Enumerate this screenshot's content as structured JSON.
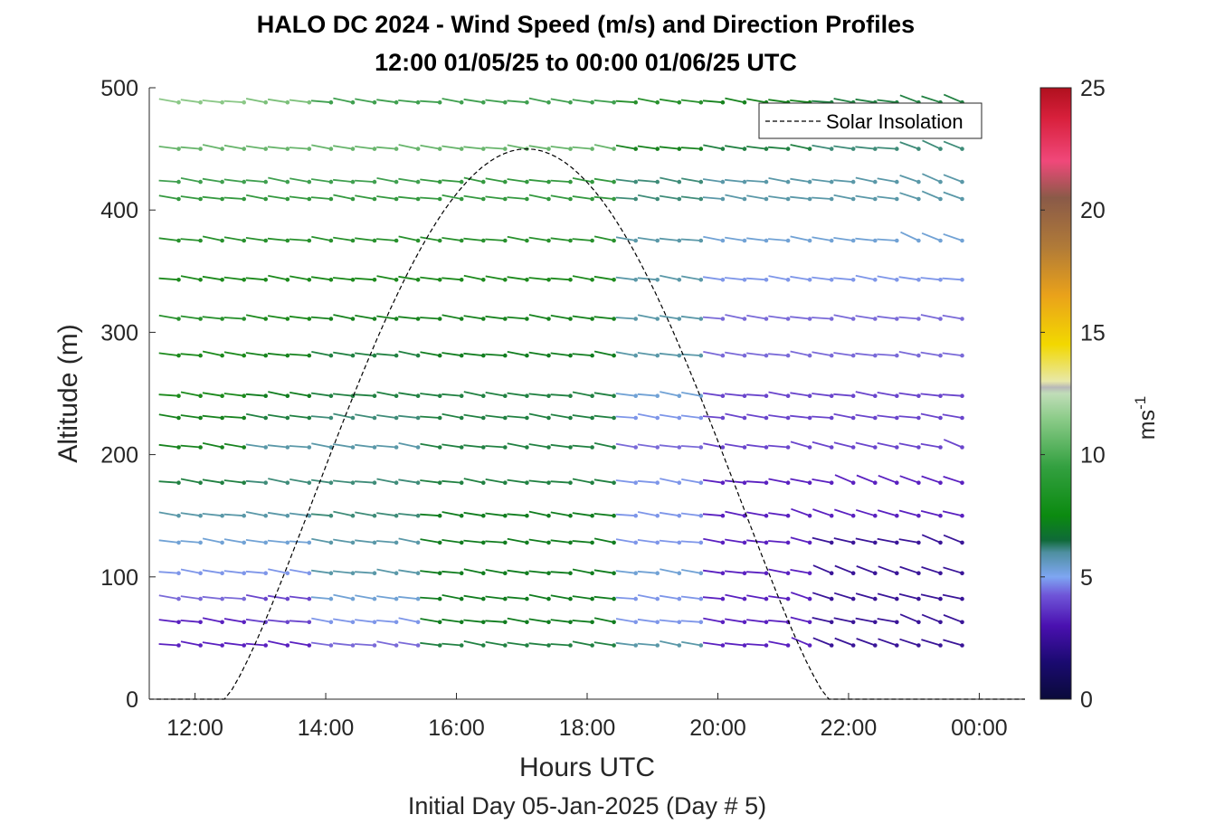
{
  "chart_data": {
    "type": "wind barb profile",
    "title": "HALO DC 2024 - Wind Speed (m/s) and Direction Profiles",
    "subtitle": "12:00 01/05/25 to 00:00 01/06/25  UTC",
    "xlabel": "Hours UTC",
    "ylabel": "Altitude (m)",
    "footer": "Initial Day 05-Jan-2025 (Day # 5)",
    "xlim_hours": [
      11.3,
      24.7
    ],
    "ylim": [
      0,
      500
    ],
    "x_ticks": [
      {
        "hour": 12,
        "label": "12:00"
      },
      {
        "hour": 14,
        "label": "14:00"
      },
      {
        "hour": 16,
        "label": "16:00"
      },
      {
        "hour": 18,
        "label": "18:00"
      },
      {
        "hour": 20,
        "label": "20:00"
      },
      {
        "hour": 22,
        "label": "22:00"
      },
      {
        "hour": 24,
        "label": "00:00"
      }
    ],
    "y_ticks": [
      0,
      100,
      200,
      300,
      400,
      500
    ],
    "colorbar": {
      "label": "ms",
      "label_exponent": "-1",
      "range": [
        0,
        25
      ],
      "ticks": [
        0,
        5,
        10,
        15,
        20,
        25
      ]
    },
    "legend": {
      "entry": "Solar Insolation",
      "position": "top-right"
    },
    "solar_insolation": {
      "rise_hour": 12.45,
      "set_hour": 21.7,
      "peak_hour": 17.1,
      "peak_altitude": 450
    },
    "altitudes_m": [
      44,
      63,
      82,
      103,
      128,
      150,
      177,
      206,
      230,
      248,
      281,
      311,
      343,
      375,
      409,
      423,
      450,
      488
    ],
    "time_start_hour": 11.75,
    "time_step_hour": 0.333,
    "time_count": 37,
    "wind_segments": [
      {
        "from_hour": 11.75,
        "to_hour": 12.75,
        "speed_by_altitude": [
          2.5,
          2.5,
          3.5,
          4,
          4.5,
          5,
          6,
          7,
          7,
          7.5,
          7.5,
          8,
          7.5,
          8,
          8.5,
          9,
          10,
          11
        ]
      },
      {
        "from_hour": 12.75,
        "to_hour": 14.0,
        "speed_by_altitude": [
          2.5,
          3,
          3,
          4,
          4.5,
          5,
          5.5,
          5,
          6,
          6.5,
          7,
          7.5,
          7.5,
          8,
          8.5,
          9,
          10,
          10.5
        ]
      },
      {
        "from_hour": 14.0,
        "to_hour": 15.7,
        "speed_by_altitude": [
          3.5,
          4,
          4.5,
          5,
          5,
          5.5,
          5.5,
          5,
          5.5,
          6,
          6,
          7,
          7.5,
          8,
          8.5,
          9,
          10,
          9
        ]
      },
      {
        "from_hour": 15.7,
        "to_hour": 18.7,
        "speed_by_altitude": [
          6,
          6.5,
          6.5,
          6.5,
          6.5,
          6.5,
          6,
          6,
          6,
          6,
          6.5,
          7,
          7.5,
          8,
          8.5,
          8.5,
          10,
          9
        ]
      },
      {
        "from_hour": 18.7,
        "to_hour": 20.0,
        "speed_by_altitude": [
          5,
          4,
          4,
          4.5,
          4,
          4,
          4,
          3.5,
          4,
          4.5,
          5,
          5,
          5,
          5,
          5.5,
          5.5,
          7,
          8
        ]
      },
      {
        "from_hour": 20.0,
        "to_hour": 21.5,
        "speed_by_altitude": [
          2.5,
          2.5,
          2.5,
          2.5,
          2.5,
          2.5,
          2.5,
          3,
          3,
          3,
          3.5,
          3.5,
          4,
          4.5,
          5,
          5,
          6,
          7
        ]
      },
      {
        "from_hour": 21.5,
        "to_hour": 24.0,
        "speed_by_altitude": [
          2,
          2,
          2,
          2,
          2,
          2.5,
          2.5,
          3,
          3,
          3,
          3.5,
          3.5,
          4,
          4.5,
          5,
          5,
          5.5,
          6
        ]
      }
    ],
    "direction_note": "Barbs mostly point from west-northwest (lines tilted slightly downward to the right); steeper near-surface barbs after 21:30"
  },
  "colors": {
    "solar_line": "#000000",
    "axis": "#262626"
  }
}
